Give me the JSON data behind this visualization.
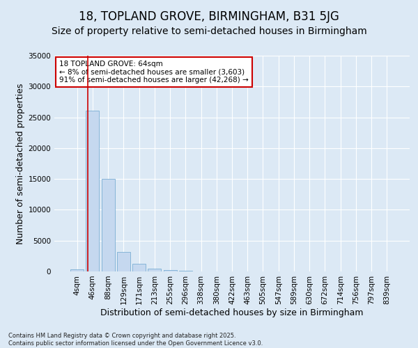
{
  "title": "18, TOPLAND GROVE, BIRMINGHAM, B31 5JG",
  "subtitle": "Size of property relative to semi-detached houses in Birmingham",
  "xlabel": "Distribution of semi-detached houses by size in Birmingham",
  "ylabel": "Number of semi-detached properties",
  "categories": [
    "4sqm",
    "46sqm",
    "88sqm",
    "129sqm",
    "171sqm",
    "213sqm",
    "255sqm",
    "296sqm",
    "338sqm",
    "380sqm",
    "422sqm",
    "463sqm",
    "505sqm",
    "547sqm",
    "589sqm",
    "630sqm",
    "672sqm",
    "714sqm",
    "756sqm",
    "797sqm",
    "839sqm"
  ],
  "values": [
    350,
    26100,
    15050,
    3200,
    1200,
    450,
    220,
    100,
    0,
    0,
    0,
    0,
    0,
    0,
    0,
    0,
    0,
    0,
    0,
    0,
    0
  ],
  "bar_color": "#c5d8ef",
  "bar_edge_color": "#7aaed4",
  "vline_x_idx": 1,
  "vline_color": "#cc0000",
  "ylim": [
    0,
    35000
  ],
  "yticks": [
    0,
    5000,
    10000,
    15000,
    20000,
    25000,
    30000,
    35000
  ],
  "annotation_text": "18 TOPLAND GROVE: 64sqm\n← 8% of semi-detached houses are smaller (3,603)\n91% of semi-detached houses are larger (42,268) →",
  "annotation_box_color": "#ffffff",
  "annotation_box_edge": "#cc0000",
  "footer": "Contains HM Land Registry data © Crown copyright and database right 2025.\nContains public sector information licensed under the Open Government Licence v3.0.",
  "bg_color": "#dce9f5",
  "title_fontsize": 12,
  "subtitle_fontsize": 10,
  "axis_label_fontsize": 9,
  "tick_fontsize": 7.5,
  "annotation_fontsize": 7.5,
  "footer_fontsize": 6
}
